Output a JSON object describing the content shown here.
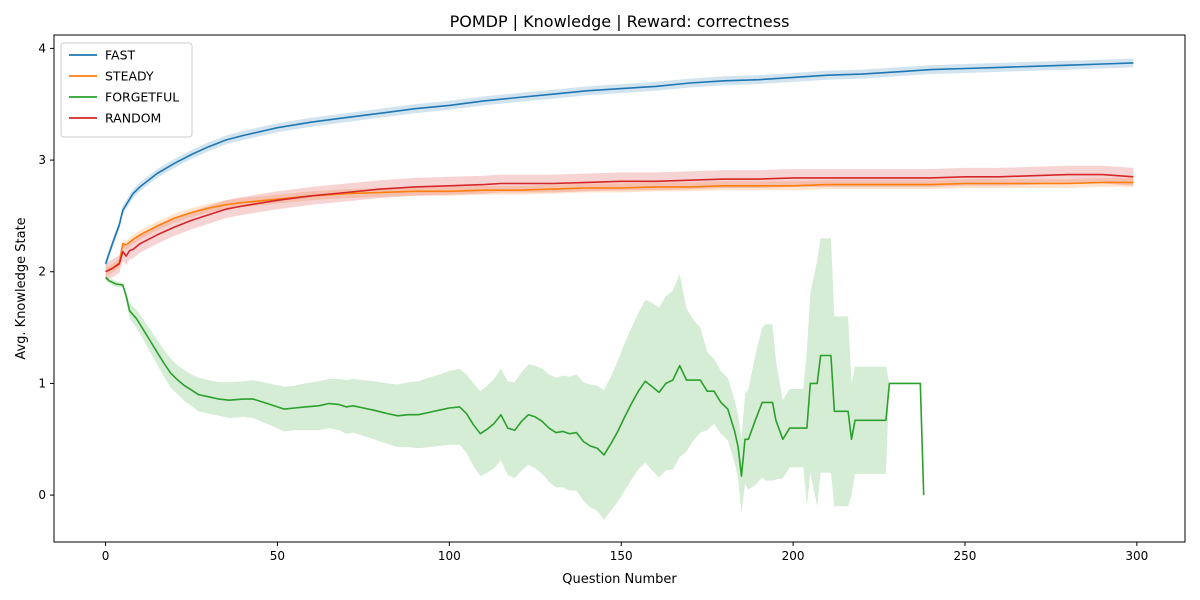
{
  "chart_data": {
    "type": "line",
    "title": "POMDP | Knowledge | Reward: correctness",
    "xlabel": "Question Number",
    "ylabel": "Avg. Knowledge State",
    "xlim": [
      -15,
      314
    ],
    "ylim": [
      -0.42,
      4.12
    ],
    "xticks": [
      0,
      50,
      100,
      150,
      200,
      250,
      300
    ],
    "yticks": [
      0,
      1,
      2,
      3,
      4
    ],
    "grid": false,
    "legend": {
      "position": "top-left"
    },
    "series": [
      {
        "name": "FAST",
        "color": "#1f77b4",
        "x": [
          0,
          2,
          4,
          5,
          6,
          8,
          10,
          15,
          20,
          25,
          30,
          35,
          40,
          50,
          60,
          70,
          80,
          90,
          100,
          110,
          120,
          130,
          140,
          150,
          160,
          170,
          180,
          190,
          200,
          210,
          220,
          230,
          240,
          250,
          260,
          270,
          280,
          290,
          299
        ],
        "y": [
          2.07,
          2.25,
          2.42,
          2.55,
          2.6,
          2.7,
          2.76,
          2.88,
          2.97,
          3.05,
          3.12,
          3.18,
          3.22,
          3.29,
          3.34,
          3.38,
          3.42,
          3.46,
          3.49,
          3.53,
          3.56,
          3.59,
          3.62,
          3.64,
          3.66,
          3.69,
          3.71,
          3.72,
          3.74,
          3.76,
          3.77,
          3.79,
          3.81,
          3.82,
          3.83,
          3.84,
          3.85,
          3.86,
          3.87
        ],
        "band": 0.04
      },
      {
        "name": "STEADY",
        "color": "#ff7f0e",
        "x": [
          0,
          2,
          4,
          5,
          6,
          8,
          10,
          15,
          20,
          25,
          30,
          35,
          40,
          50,
          60,
          70,
          80,
          90,
          100,
          110,
          120,
          130,
          140,
          150,
          160,
          170,
          180,
          190,
          200,
          210,
          220,
          230,
          240,
          250,
          260,
          270,
          280,
          290,
          299
        ],
        "y": [
          2.0,
          2.03,
          2.08,
          2.25,
          2.24,
          2.29,
          2.33,
          2.41,
          2.48,
          2.53,
          2.57,
          2.6,
          2.62,
          2.65,
          2.68,
          2.7,
          2.71,
          2.72,
          2.72,
          2.73,
          2.73,
          2.74,
          2.75,
          2.75,
          2.76,
          2.76,
          2.77,
          2.77,
          2.77,
          2.78,
          2.78,
          2.78,
          2.78,
          2.79,
          2.79,
          2.79,
          2.79,
          2.8,
          2.8
        ],
        "band": 0.04
      },
      {
        "name": "FORGETFUL",
        "color": "#2ca02c",
        "x": [
          0,
          1,
          3,
          5,
          6,
          7,
          9,
          11,
          13,
          15,
          17,
          19,
          21,
          23,
          25,
          27,
          30,
          33,
          36,
          40,
          43,
          46,
          49,
          52,
          55,
          58,
          62,
          65,
          68,
          70,
          72,
          75,
          78,
          82,
          85,
          88,
          91,
          94,
          97,
          100,
          103,
          105,
          107,
          109,
          111,
          113,
          115,
          117,
          119,
          121,
          123,
          125,
          127,
          129,
          131,
          133,
          135,
          137,
          139,
          141,
          143,
          145,
          147,
          149,
          151,
          153,
          155,
          157,
          159,
          161,
          163,
          165,
          167,
          169,
          171,
          173,
          175,
          177,
          179,
          181,
          183,
          184,
          185,
          186,
          187,
          189,
          191,
          192,
          193,
          194,
          195,
          197,
          199,
          201,
          203,
          204,
          205,
          206,
          207,
          208,
          209,
          210,
          211,
          212,
          213,
          214,
          216,
          217,
          218,
          219,
          221,
          223,
          225,
          227,
          228,
          229,
          231,
          233,
          235,
          237,
          238
        ],
        "y": [
          1.95,
          1.92,
          1.89,
          1.88,
          1.78,
          1.65,
          1.58,
          1.48,
          1.38,
          1.28,
          1.18,
          1.09,
          1.03,
          0.98,
          0.94,
          0.9,
          0.88,
          0.86,
          0.85,
          0.86,
          0.86,
          0.83,
          0.8,
          0.77,
          0.78,
          0.79,
          0.8,
          0.82,
          0.81,
          0.79,
          0.8,
          0.78,
          0.76,
          0.73,
          0.71,
          0.72,
          0.72,
          0.74,
          0.76,
          0.78,
          0.79,
          0.73,
          0.63,
          0.55,
          0.59,
          0.64,
          0.72,
          0.6,
          0.58,
          0.66,
          0.72,
          0.7,
          0.66,
          0.6,
          0.56,
          0.57,
          0.55,
          0.56,
          0.48,
          0.44,
          0.42,
          0.36,
          0.46,
          0.57,
          0.7,
          0.82,
          0.93,
          1.02,
          0.97,
          0.92,
          1.0,
          1.03,
          1.16,
          1.03,
          1.03,
          1.03,
          0.93,
          0.93,
          0.83,
          0.77,
          0.57,
          0.43,
          0.17,
          0.5,
          0.5,
          0.67,
          0.83,
          0.83,
          0.83,
          0.83,
          0.67,
          0.5,
          0.6,
          0.6,
          0.6,
          0.6,
          1.0,
          1.0,
          1.0,
          1.25,
          1.25,
          1.25,
          1.25,
          0.75,
          0.75,
          0.75,
          0.75,
          0.5,
          0.67,
          0.67,
          0.67,
          0.67,
          0.67,
          0.67,
          1.0,
          1.0,
          1.0,
          1.0,
          1.0,
          1.0,
          0.0
        ],
        "band_upper": [
          1.97,
          1.94,
          1.92,
          1.9,
          1.82,
          1.72,
          1.66,
          1.57,
          1.48,
          1.39,
          1.3,
          1.22,
          1.16,
          1.12,
          1.08,
          1.05,
          1.03,
          1.01,
          1.01,
          1.02,
          1.03,
          1.01,
          0.99,
          0.97,
          0.98,
          1.0,
          1.02,
          1.04,
          1.04,
          1.03,
          1.04,
          1.03,
          1.02,
          1.0,
          0.99,
          1.01,
          1.02,
          1.05,
          1.08,
          1.11,
          1.13,
          1.08,
          1.0,
          0.93,
          0.98,
          1.04,
          1.13,
          1.02,
          1.01,
          1.1,
          1.17,
          1.16,
          1.13,
          1.08,
          1.05,
          1.07,
          1.06,
          1.08,
          1.01,
          0.99,
          0.98,
          0.94,
          1.06,
          1.2,
          1.36,
          1.5,
          1.63,
          1.75,
          1.72,
          1.68,
          1.78,
          1.83,
          1.98,
          1.67,
          1.57,
          1.5,
          1.28,
          1.22,
          1.11,
          1.05,
          0.85,
          0.71,
          0.5,
          0.9,
          0.95,
          1.25,
          1.5,
          1.53,
          1.53,
          1.53,
          1.2,
          0.85,
          0.95,
          0.95,
          0.95,
          1.3,
          1.8,
          1.95,
          2.1,
          2.3,
          2.3,
          2.3,
          2.3,
          1.6,
          1.6,
          1.6,
          1.6,
          1.0,
          1.15,
          1.15,
          1.15,
          1.15,
          1.15,
          1.15,
          1.0,
          1.0,
          1.0,
          1.0,
          1.0,
          1.0,
          0.0
        ],
        "band_lower": [
          1.93,
          1.9,
          1.86,
          1.86,
          1.74,
          1.58,
          1.5,
          1.39,
          1.28,
          1.17,
          1.06,
          0.96,
          0.9,
          0.84,
          0.8,
          0.75,
          0.73,
          0.71,
          0.69,
          0.7,
          0.69,
          0.65,
          0.61,
          0.57,
          0.58,
          0.58,
          0.58,
          0.6,
          0.58,
          0.55,
          0.56,
          0.53,
          0.5,
          0.46,
          0.43,
          0.43,
          0.42,
          0.43,
          0.44,
          0.45,
          0.45,
          0.38,
          0.26,
          0.17,
          0.2,
          0.24,
          0.31,
          0.18,
          0.15,
          0.22,
          0.27,
          0.24,
          0.19,
          0.12,
          0.07,
          0.07,
          0.04,
          0.04,
          -0.05,
          -0.11,
          -0.14,
          -0.22,
          -0.14,
          -0.06,
          0.04,
          0.14,
          0.23,
          0.29,
          0.22,
          0.16,
          0.22,
          0.23,
          0.34,
          0.39,
          0.49,
          0.56,
          0.58,
          0.64,
          0.55,
          0.49,
          0.29,
          0.15,
          -0.16,
          0.1,
          0.05,
          0.09,
          0.16,
          0.13,
          0.13,
          0.13,
          0.14,
          0.15,
          0.25,
          0.25,
          0.25,
          -0.1,
          0.2,
          0.05,
          -0.1,
          0.2,
          0.2,
          0.2,
          0.2,
          -0.1,
          -0.1,
          -0.1,
          -0.1,
          0.0,
          0.19,
          0.19,
          0.19,
          0.19,
          0.19,
          0.19,
          1.0,
          1.0,
          1.0,
          1.0,
          1.0,
          1.0,
          0.0
        ]
      },
      {
        "name": "RANDOM",
        "color": "#d62728",
        "x": [
          0,
          2,
          4,
          5,
          6,
          7,
          8,
          10,
          15,
          20,
          25,
          30,
          35,
          40,
          50,
          60,
          70,
          80,
          90,
          100,
          110,
          115,
          120,
          130,
          140,
          150,
          160,
          170,
          180,
          190,
          200,
          210,
          220,
          230,
          240,
          250,
          260,
          270,
          280,
          290,
          299
        ],
        "y": [
          2.0,
          2.03,
          2.07,
          2.18,
          2.14,
          2.19,
          2.2,
          2.25,
          2.33,
          2.4,
          2.46,
          2.51,
          2.56,
          2.59,
          2.64,
          2.68,
          2.71,
          2.74,
          2.76,
          2.77,
          2.78,
          2.79,
          2.79,
          2.79,
          2.8,
          2.81,
          2.81,
          2.82,
          2.83,
          2.83,
          2.84,
          2.84,
          2.84,
          2.84,
          2.84,
          2.85,
          2.85,
          2.86,
          2.87,
          2.87,
          2.85
        ],
        "band": 0.08
      }
    ]
  }
}
